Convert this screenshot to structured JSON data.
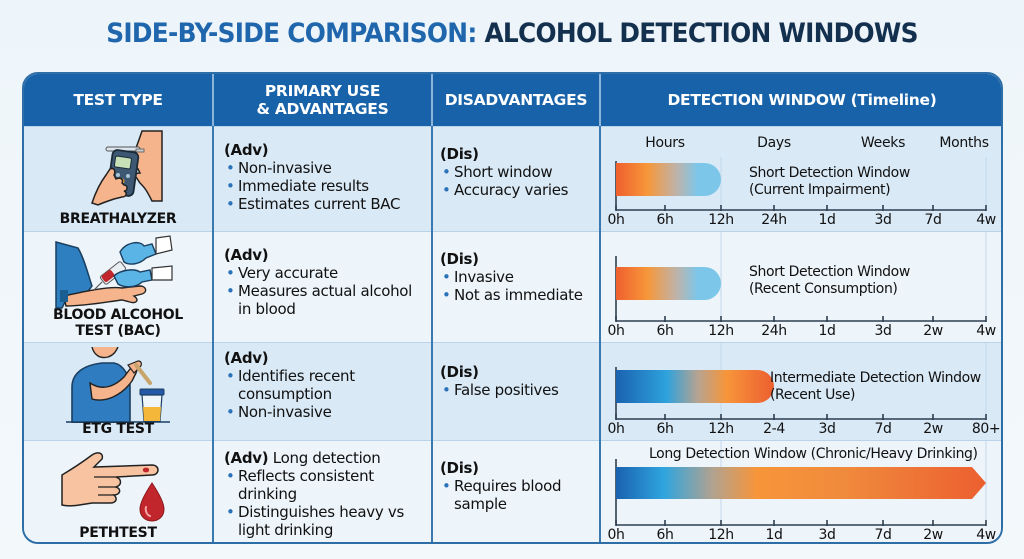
{
  "title": {
    "part1": "SIDE-BY-SIDE COMPARISON:",
    "part2": "ALCOHOL DETECTION WINDOWS"
  },
  "colors": {
    "title_blue": "#1f66ad",
    "title_navy": "#14304f",
    "header_blue": "#1762a8",
    "orange": "#ef6a33",
    "light_orange": "#f7953a",
    "light_blue": "#7cc6ea",
    "dark_blue": "#1a6db8",
    "bullet_blue": "#2a73b8"
  },
  "columns": [
    {
      "label": "TEST TYPE"
    },
    {
      "label": "PRIMARY USE\n& ADVANTAGES"
    },
    {
      "label": "DISADVANTAGES"
    },
    {
      "label": "DETECTION WINDOW (Timeline)"
    }
  ],
  "scale_labels": [
    "Hours",
    "Days",
    "Weeks",
    "Months"
  ],
  "rows": [
    {
      "name": "BREATHALYZER",
      "icon": "breathalyzer-icon",
      "adv_heading": "(Adv)",
      "adv_items": [
        "Non-invasive",
        "Immediate results",
        "Estimates current BAC"
      ],
      "dis_heading": "(Dis)",
      "dis_items": [
        "Short window",
        "Accuracy varies"
      ],
      "window_title": "Short Detection Window",
      "window_subtitle": "(Current Impairment)",
      "ticks": [
        "0h",
        "6h",
        "12h",
        "24h",
        "1d",
        "3d",
        "7d",
        "4w"
      ],
      "bar_end_tick_index": 2,
      "bar_gradient": "orange-to-lightblue",
      "show_scale": true
    },
    {
      "name": "BLOOD ALCOHOL TEST (BAC)",
      "icon": "blood-draw-icon",
      "adv_heading": "(Adv)",
      "adv_items": [
        "Very accurate",
        "Measures actual alcohol in blood"
      ],
      "dis_heading": "(Dis)",
      "dis_items": [
        "Invasive",
        "Not as immediate"
      ],
      "window_title": "Short Detection Window",
      "window_subtitle": "(Recent Consumption)",
      "ticks": [
        "0h",
        "6h",
        "12h",
        "24h",
        "1d",
        "3d",
        "2w",
        "4w"
      ],
      "bar_end_tick_index": 2,
      "bar_gradient": "orange-to-lightblue",
      "show_scale": false
    },
    {
      "name": "ETG TEST",
      "icon": "urine-sample-icon",
      "adv_heading": "(Adv)",
      "adv_items": [
        "Identifies recent consumption",
        "Non-invasive"
      ],
      "dis_heading": "(Dis)",
      "dis_items": [
        "False positives"
      ],
      "window_title": "Intermediate Detection Window",
      "window_subtitle": "(Recent Use)",
      "ticks": [
        "0h",
        "6h",
        "12h",
        "2-4",
        "3d",
        "7d",
        "2w",
        "80+"
      ],
      "bar_end_tick_index": 3,
      "bar_gradient": "blue-to-orange",
      "show_scale": false
    },
    {
      "name": "PETHTEST",
      "icon": "finger-prick-icon",
      "adv_heading": "(Adv)",
      "adv_heading_suffix": "Long detection",
      "adv_items": [
        "Reflects consistent drinking",
        "Distinguishes heavy vs light drinking"
      ],
      "dis_heading": "(Dis)",
      "dis_items": [
        "Requires blood sample"
      ],
      "window_title": "Long Detection Window (Chronic/Heavy Drinking)",
      "window_subtitle": "",
      "ticks": [
        "0h",
        "6h",
        "12h",
        "1d",
        "3d",
        "7d",
        "2w",
        "4w"
      ],
      "bar_end_tick_index": 7,
      "bar_gradient": "blue-to-orange-arrow",
      "show_scale": false
    }
  ]
}
